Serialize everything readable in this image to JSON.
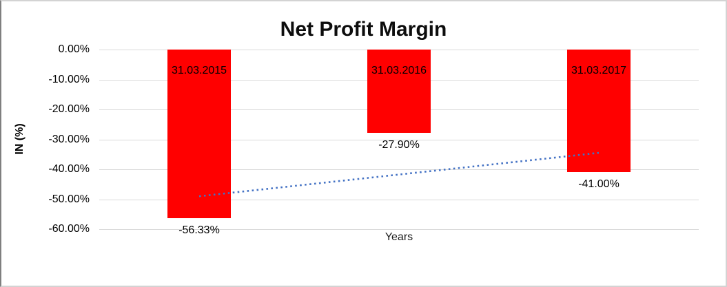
{
  "chart_data": {
    "type": "bar",
    "title": "Net Profit Margin",
    "xlabel": "Years",
    "ylabel": "IN (%)",
    "categories": [
      "31.03.2015",
      "31.03.2016",
      "31.03.2017"
    ],
    "values": [
      -56.33,
      -27.9,
      -41.0
    ],
    "value_labels": [
      "-56.33%",
      "-27.90%",
      "-41.00%"
    ],
    "bar_color": "#ff0000",
    "ylim": [
      -60,
      0
    ],
    "grid": true,
    "legend_position": "none",
    "y_axis_ticks": [
      {
        "value": 0,
        "label": "0.00%"
      },
      {
        "value": -10,
        "label": "-10.00%"
      },
      {
        "value": -20,
        "label": "-20.00%"
      },
      {
        "value": -30,
        "label": "-30.00%"
      },
      {
        "value": -40,
        "label": "-40.00%"
      },
      {
        "value": -50,
        "label": "-50.00%"
      },
      {
        "value": -60,
        "label": "-60.00%"
      }
    ],
    "trendline": {
      "style": "dotted",
      "color": "#4472c4",
      "start_value": -49.0,
      "end_value": -34.5
    }
  }
}
